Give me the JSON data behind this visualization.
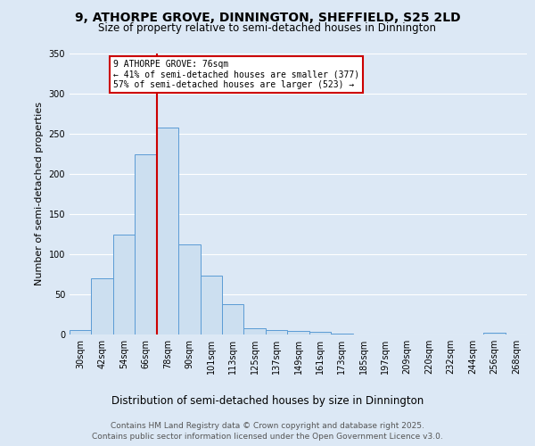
{
  "title_line1": "9, ATHORPE GROVE, DINNINGTON, SHEFFIELD, S25 2LD",
  "title_line2": "Size of property relative to semi-detached houses in Dinnington",
  "xlabel": "Distribution of semi-detached houses by size in Dinnington",
  "ylabel": "Number of semi-detached properties",
  "categories": [
    "30sqm",
    "42sqm",
    "54sqm",
    "66sqm",
    "78sqm",
    "90sqm",
    "101sqm",
    "113sqm",
    "125sqm",
    "137sqm",
    "149sqm",
    "161sqm",
    "173sqm",
    "185sqm",
    "197sqm",
    "209sqm",
    "220sqm",
    "232sqm",
    "244sqm",
    "256sqm",
    "268sqm"
  ],
  "values": [
    6,
    70,
    125,
    225,
    258,
    112,
    73,
    38,
    8,
    6,
    5,
    3,
    1,
    0,
    0,
    0,
    0,
    0,
    0,
    2,
    0
  ],
  "bar_color": "#ccdff0",
  "bar_edge_color": "#5b9bd5",
  "vline_color": "#cc0000",
  "annotation_text": "9 ATHORPE GROVE: 76sqm\n← 41% of semi-detached houses are smaller (377)\n57% of semi-detached houses are larger (523) →",
  "annotation_box_color": "#ffffff",
  "annotation_box_edge": "#cc0000",
  "footer_line1": "Contains HM Land Registry data © Crown copyright and database right 2025.",
  "footer_line2": "Contains public sector information licensed under the Open Government Licence v3.0.",
  "ylim": [
    0,
    350
  ],
  "background_color": "#dce8f5",
  "plot_background": "#dce8f5",
  "vline_index": 3.5
}
